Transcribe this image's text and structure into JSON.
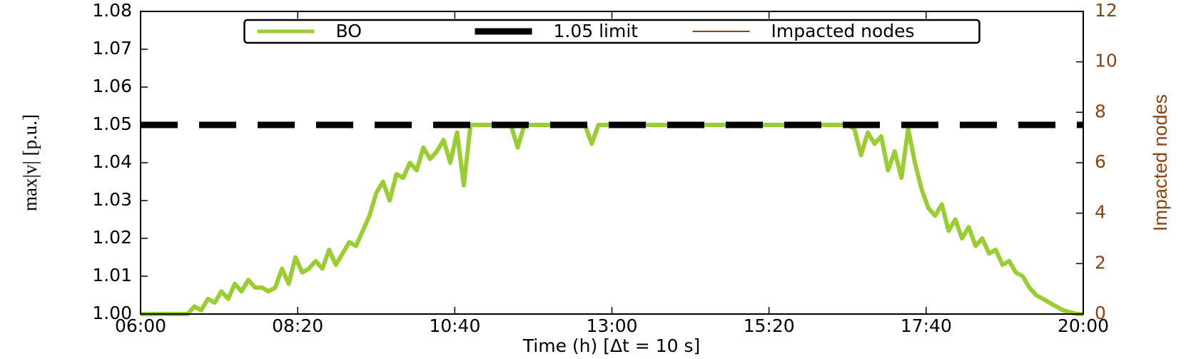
{
  "chart_data": {
    "type": "line",
    "xlabel": "Time (h)  [Δt = 10 s]",
    "ylabel": "max|v| [p.u.]",
    "y2label": "Impacted nodes",
    "y2color": "#8b4513",
    "xlim": [
      6,
      20
    ],
    "xticks": [
      {
        "value": 6,
        "label": "06:00"
      },
      {
        "value": 8.3333,
        "label": "08:20"
      },
      {
        "value": 10.6667,
        "label": "10:40"
      },
      {
        "value": 13,
        "label": "13:00"
      },
      {
        "value": 15.3333,
        "label": "15:20"
      },
      {
        "value": 17.6667,
        "label": "17:40"
      },
      {
        "value": 20,
        "label": "20:00"
      }
    ],
    "ylim": [
      1.0,
      1.08
    ],
    "yticks": [
      {
        "value": 1.0,
        "label": "1.00"
      },
      1.01,
      1.02,
      1.03,
      1.04,
      1.05,
      1.06,
      1.07,
      1.08
    ],
    "y2lim": [
      0,
      12
    ],
    "y2ticks": [
      0,
      2,
      4,
      6,
      8,
      10,
      12
    ],
    "legend": "upper center",
    "series": [
      {
        "name": "BO",
        "color": "#9acd32",
        "x": [
          6.0,
          6.5,
          6.7,
          6.8,
          6.9,
          7.0,
          7.1,
          7.2,
          7.3,
          7.4,
          7.5,
          7.6,
          7.7,
          7.8,
          7.9,
          8.0,
          8.1,
          8.2,
          8.3,
          8.4,
          8.5,
          8.6,
          8.7,
          8.8,
          8.9,
          9.0,
          9.1,
          9.2,
          9.3,
          9.4,
          9.5,
          9.6,
          9.7,
          9.8,
          9.9,
          10.0,
          10.1,
          10.2,
          10.3,
          10.4,
          10.5,
          10.6,
          10.7,
          10.8,
          10.9,
          11.0,
          11.5,
          11.6,
          11.7,
          12.6,
          12.7,
          12.8,
          16.5,
          16.6,
          16.7,
          16.8,
          16.9,
          17.0,
          17.1,
          17.2,
          17.3,
          17.4,
          17.5,
          17.6,
          17.7,
          17.8,
          17.9,
          18.0,
          18.1,
          18.2,
          18.3,
          18.4,
          18.5,
          18.6,
          18.7,
          18.8,
          18.9,
          19.0,
          19.1,
          19.2,
          19.3,
          19.4,
          19.5,
          19.6,
          19.7,
          19.8,
          19.9,
          20.0
        ],
        "values": [
          1.0,
          1.0,
          1.0,
          1.002,
          1.001,
          1.004,
          1.003,
          1.006,
          1.004,
          1.008,
          1.006,
          1.009,
          1.007,
          1.007,
          1.006,
          1.007,
          1.012,
          1.008,
          1.015,
          1.011,
          1.012,
          1.014,
          1.012,
          1.017,
          1.013,
          1.016,
          1.019,
          1.018,
          1.022,
          1.026,
          1.032,
          1.035,
          1.03,
          1.037,
          1.036,
          1.04,
          1.038,
          1.044,
          1.041,
          1.043,
          1.046,
          1.04,
          1.048,
          1.034,
          1.05,
          1.05,
          1.05,
          1.044,
          1.05,
          1.05,
          1.045,
          1.05,
          1.05,
          1.049,
          1.042,
          1.048,
          1.045,
          1.047,
          1.038,
          1.043,
          1.036,
          1.049,
          1.04,
          1.033,
          1.028,
          1.026,
          1.029,
          1.022,
          1.025,
          1.02,
          1.023,
          1.018,
          1.02,
          1.016,
          1.017,
          1.013,
          1.014,
          1.011,
          1.01,
          1.007,
          1.005,
          1.004,
          1.003,
          1.002,
          1.001,
          1.0005,
          1.0,
          1.0
        ]
      },
      {
        "name": "1.05 limit",
        "color": "#000000",
        "dashed": true,
        "x": [
          6,
          20
        ],
        "values": [
          1.05,
          1.05
        ]
      },
      {
        "name": "Impacted nodes",
        "color": "#8b4513",
        "axis": "y2",
        "x": [
          6,
          20
        ],
        "values": [
          0,
          0
        ]
      }
    ]
  }
}
